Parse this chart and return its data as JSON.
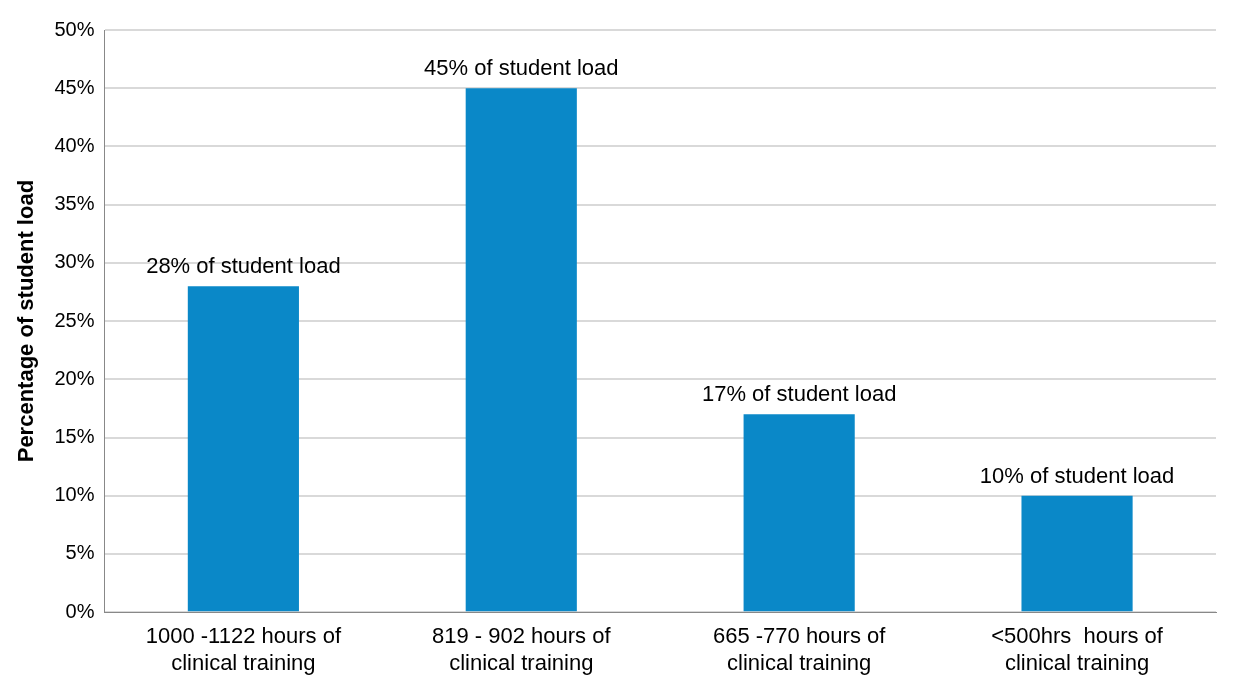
{
  "chart_data": {
    "type": "bar",
    "ylabel": "Percentage of student load",
    "categories": [
      "1000 -1122 hours of clinical training",
      "819 - 902 hours of clinical training",
      "665 -770 hours of clinical training",
      "<500hrs  hours of clinical training"
    ],
    "values": [
      28,
      45,
      17,
      10
    ],
    "color": "#0a88c8",
    "value_labels": [
      "28% of student load",
      "45% of student load",
      "17% of student load",
      "10% of student load"
    ],
    "ylim": [
      0,
      50
    ],
    "yticks": [
      {
        "value": 0,
        "label": "0%"
      },
      {
        "value": 5,
        "label": "5%"
      },
      {
        "value": 10,
        "label": "10%"
      },
      {
        "value": 15,
        "label": "15%"
      },
      {
        "value": 20,
        "label": "20%"
      },
      {
        "value": 25,
        "label": "25%"
      },
      {
        "value": 30,
        "label": "30%"
      },
      {
        "value": 35,
        "label": "35%"
      },
      {
        "value": 40,
        "label": "40%"
      },
      {
        "value": 45,
        "label": "45%"
      },
      {
        "value": 50,
        "label": "50%"
      }
    ],
    "grid": "y",
    "legend": false
  }
}
